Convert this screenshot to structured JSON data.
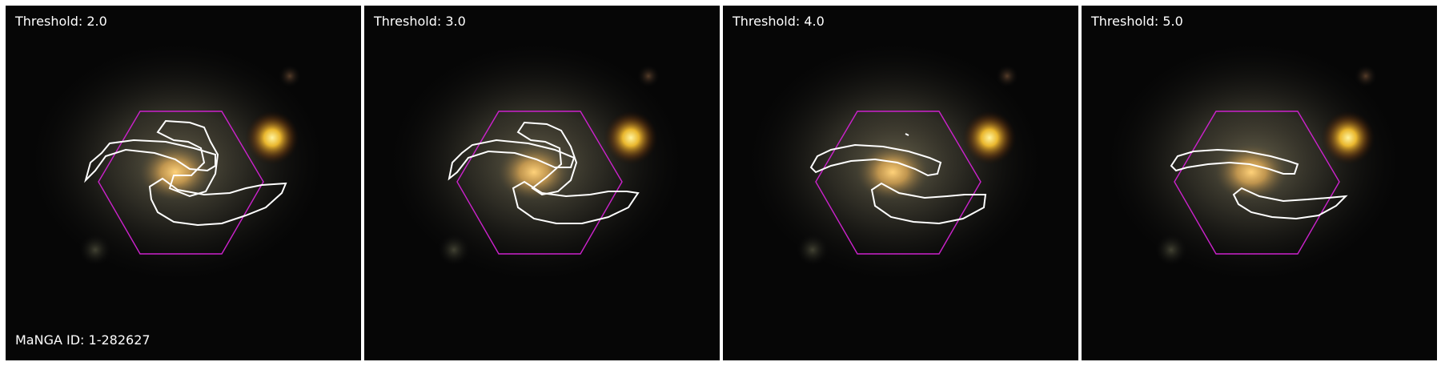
{
  "panels": [
    {
      "label": "Threshold: 2.0"
    },
    {
      "label": "Threshold: 3.0"
    },
    {
      "label": "Threshold: 4.0"
    },
    {
      "label": "Threshold: 5.0"
    }
  ],
  "manga_id": "MaNGA ID: 1-282627",
  "colors": {
    "background": "#050505",
    "contour": "#ffffff",
    "hexagon": "#cc22cc",
    "galaxy_core": "#ffcc66",
    "bright_star": "#ffe040"
  }
}
